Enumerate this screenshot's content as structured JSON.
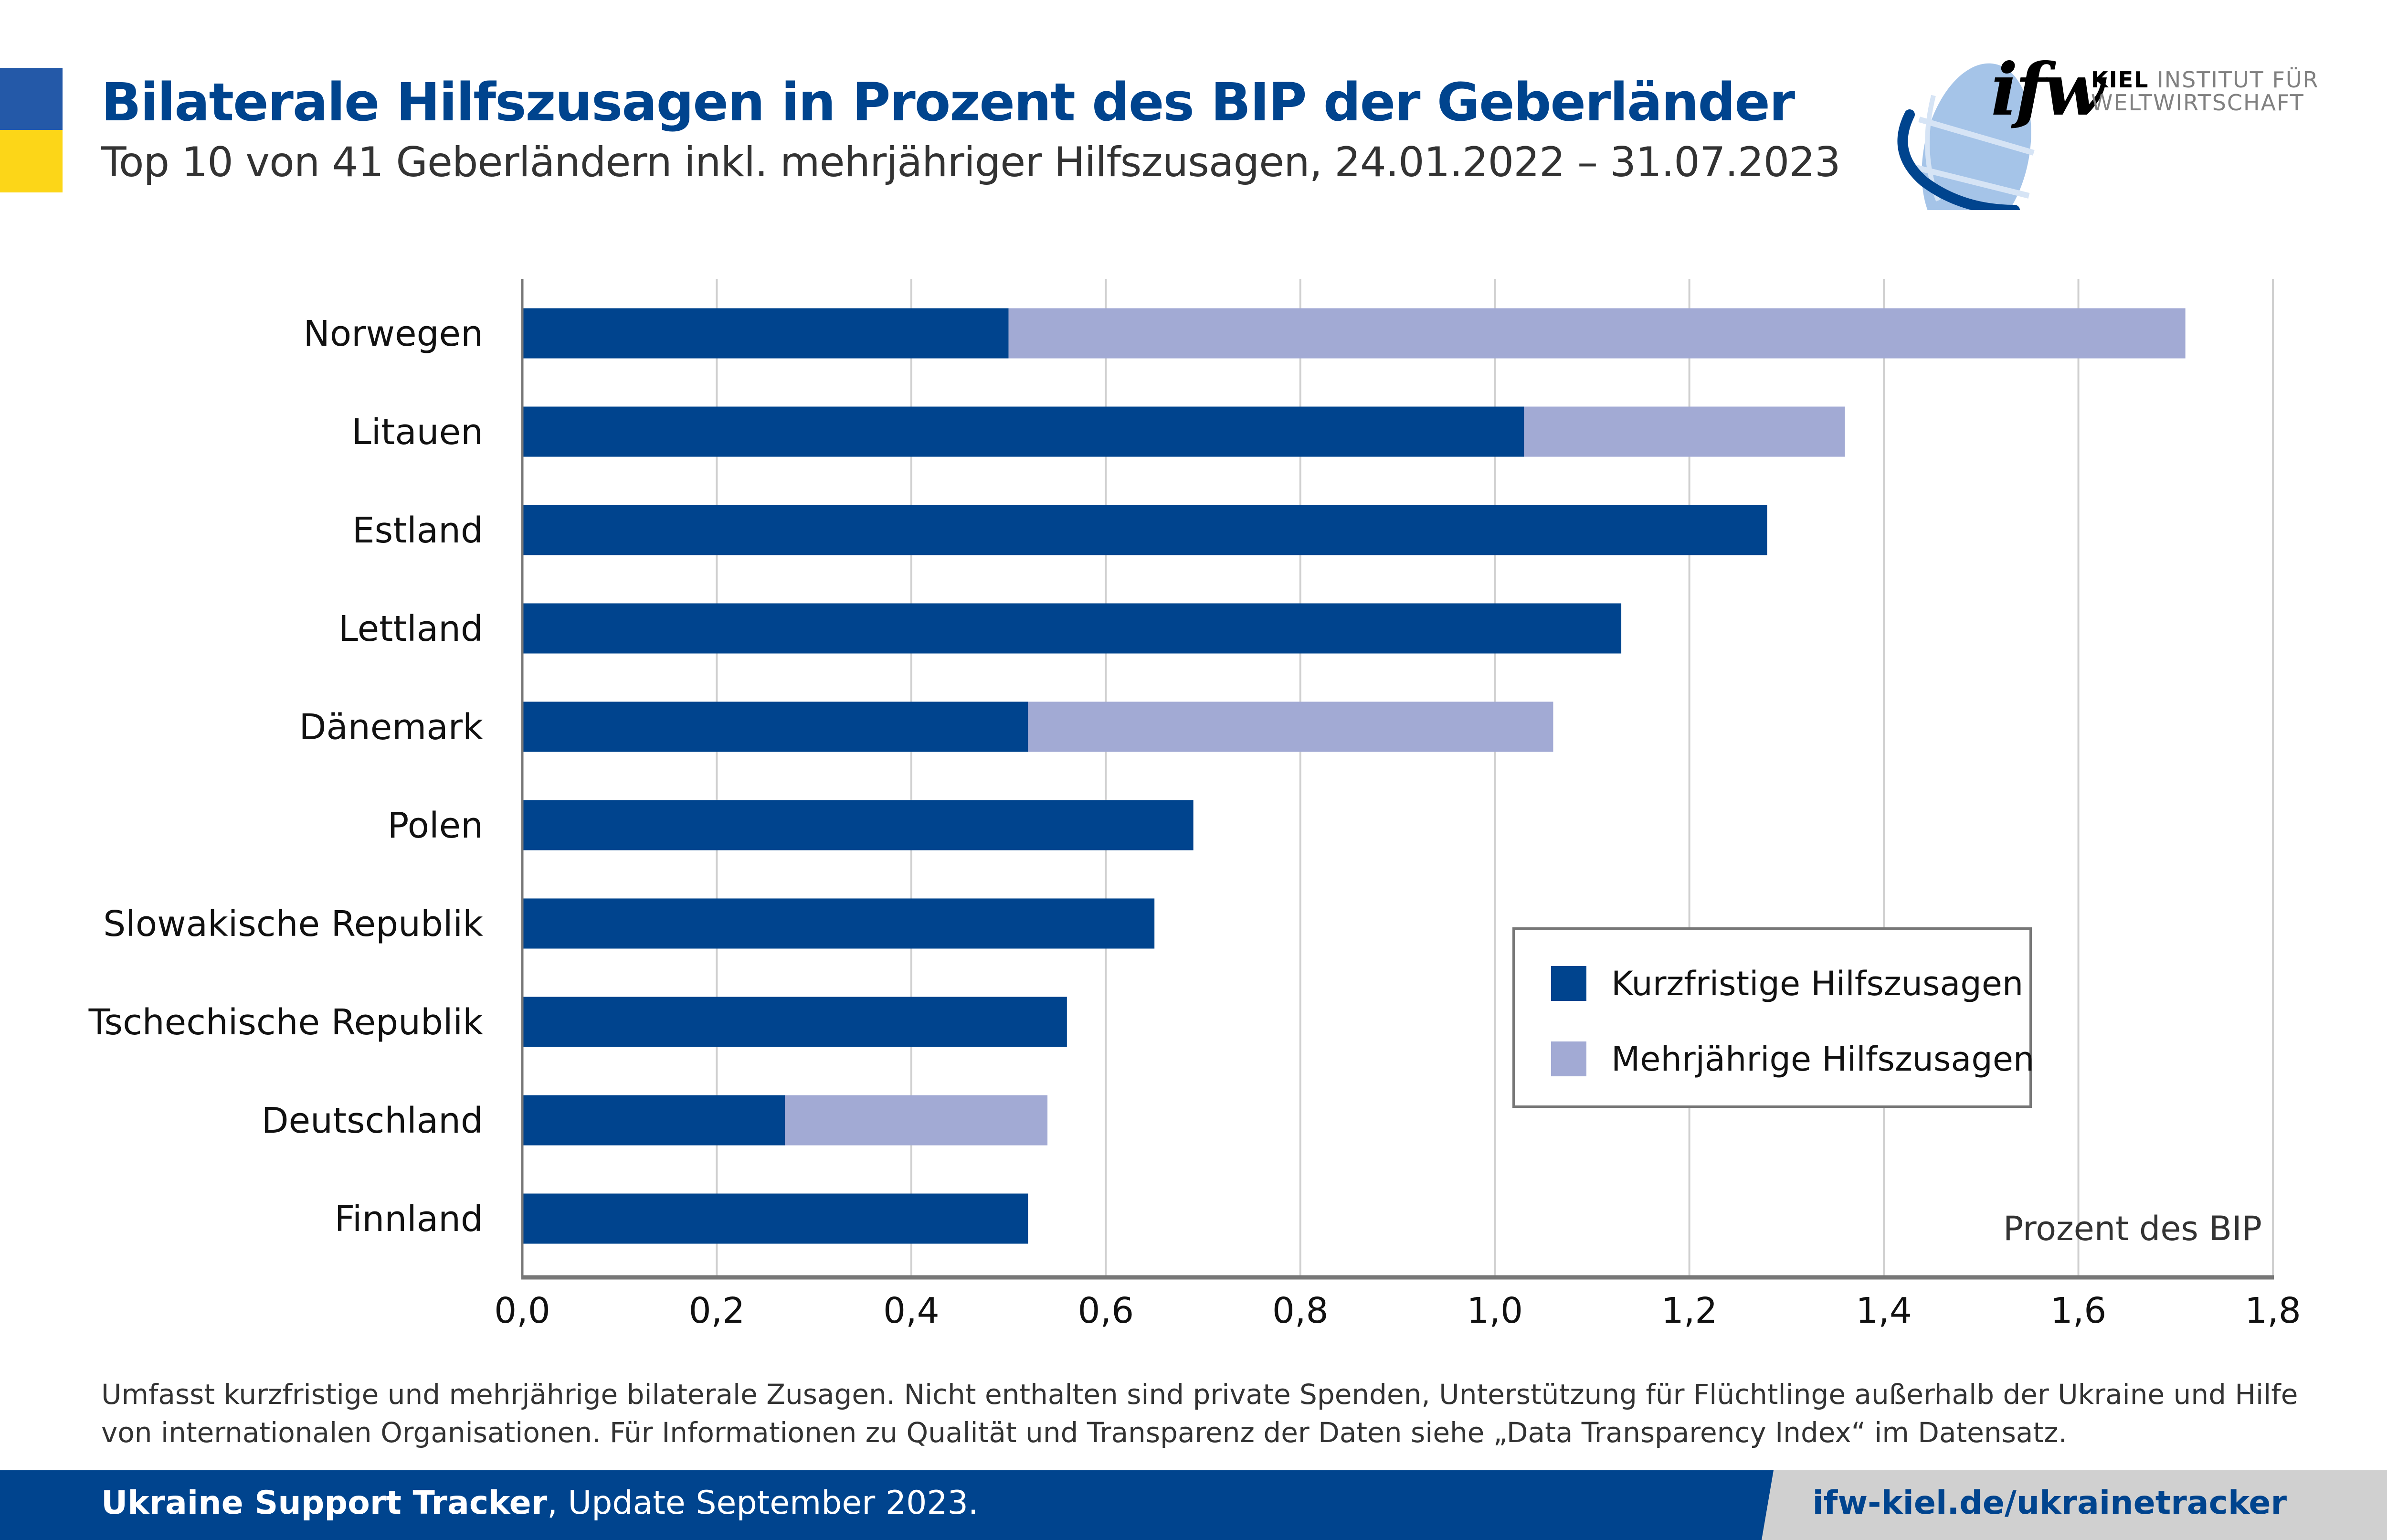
{
  "header": {
    "title": "Bilaterale Hilfszusagen in Prozent des BIP der Geberländer",
    "subtitle": "Top 10 von 41 Geberländern inkl. mehrjähriger Hilfszusagen, 24.01.2022 – 31.07.2023",
    "stripe_colors": {
      "top": "#2459A8",
      "bottom": "#FCD618"
    }
  },
  "logo": {
    "mark": "ifw",
    "line1_bold": "KIEL",
    "line1_rest": " INSTITUT FÜR",
    "line2": "WELTWIRTSCHAFT",
    "icon": "globe-icon"
  },
  "chart_data": {
    "type": "bar",
    "orientation": "horizontal",
    "stacked": true,
    "title": "Bilaterale Hilfszusagen in Prozent des BIP der Geberländer",
    "subtitle": "Top 10 von 41 Geberländern inkl. mehrjähriger Hilfszusagen, 24.01.2022 – 31.07.2023",
    "categories": [
      "Norwegen",
      "Litauen",
      "Estland",
      "Lettland",
      "Dänemark",
      "Polen",
      "Slowakische Republik",
      "Tschechische Republik",
      "Deutschland",
      "Finnland"
    ],
    "series": [
      {
        "name": "Kurzfristige Hilfszusagen",
        "color": "#00448E",
        "values": [
          0.5,
          1.03,
          1.28,
          1.13,
          0.52,
          0.69,
          0.65,
          0.56,
          0.27,
          0.52
        ]
      },
      {
        "name": "Mehrjährige Hilfszusagen",
        "color": "#A2AAD4",
        "values": [
          1.21,
          0.33,
          0.0,
          0.0,
          0.54,
          0.0,
          0.0,
          0.0,
          0.27,
          0.0
        ]
      }
    ],
    "xlabel": "Prozent des BIP",
    "ylabel": "",
    "xlim": [
      0.0,
      1.8
    ],
    "xticks": [
      0.0,
      0.2,
      0.4,
      0.6,
      0.8,
      1.0,
      1.2,
      1.4,
      1.6,
      1.8
    ],
    "xtick_labels": [
      "0,0",
      "0,2",
      "0,4",
      "0,6",
      "0,8",
      "1,0",
      "1,2",
      "1,4",
      "1,6",
      "1,8"
    ],
    "grid": "vertical",
    "legend": "center-right"
  },
  "footnote": "Umfasst kurzfristige und mehrjährige bilaterale Zusagen. Nicht enthalten sind private Spenden, Unterstützung für Flüchtlinge außerhalb der Ukraine und Hilfe von internationalen Organisationen. Für Informationen zu Qualität und Transparenz der Daten siehe „Data Transparency Index“ im Datensatz.",
  "footer": {
    "source_bold": "Ukraine Support Tracker",
    "source_rest": ", Update September 2023.",
    "link": "ifw-kiel.de/ukrainetracker"
  }
}
